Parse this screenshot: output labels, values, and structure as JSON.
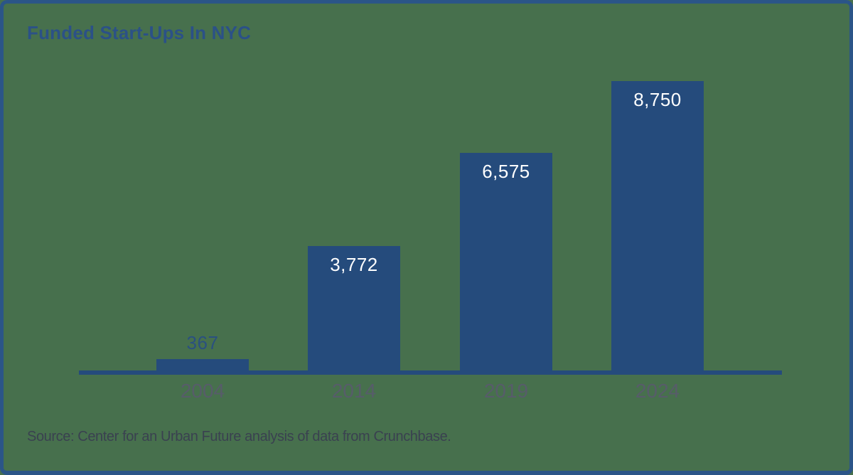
{
  "title": "Funded Start-Ups In NYC",
  "source": "Source: Center for an Urban Future analysis of data from Crunchbase.",
  "colors": {
    "background": "#47704D",
    "border": "#2B5588",
    "bar": "#254B7C",
    "title_text": "#2B5187",
    "value_label_inside": "#FFFFFF",
    "value_label_above": "#2A5080",
    "tick_label": "#575C6A",
    "source_text": "#3A4150",
    "axis": "#254B7C"
  },
  "chart_data": {
    "type": "bar",
    "title": "Funded Start-Ups In NYC",
    "categories": [
      "2004",
      "2014",
      "2019",
      "2024"
    ],
    "values": [
      367,
      3772,
      6575,
      8750
    ],
    "value_labels": [
      "367",
      "3,772",
      "6,575",
      "8,750"
    ],
    "value_label_positions": [
      "above",
      "inside",
      "inside",
      "inside"
    ],
    "xlabel": "",
    "ylabel": "",
    "ylim": [
      0,
      8750
    ],
    "grid": false,
    "legend": false,
    "source": "Source: Center for an Urban Future analysis of data from Crunchbase."
  }
}
